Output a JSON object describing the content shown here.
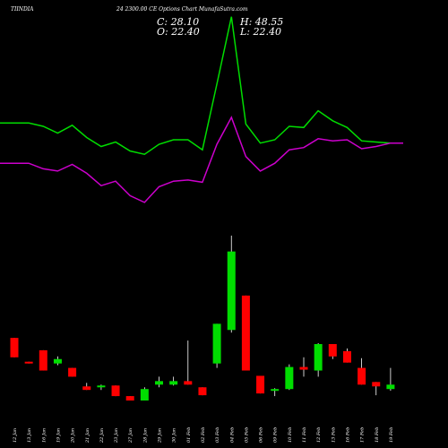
{
  "header": {
    "symbol": "TIINDIA",
    "contract": "24 2300.00  CE Options  Chart MunafaSutra.com",
    "c_label": "C: 28.10",
    "h_label": "H: 48.55",
    "o_label": "O: 22.40",
    "l_label": "L: 22.40"
  },
  "chart_data": {
    "type": "candlestick",
    "x_labels": [
      "12 Jan",
      "13 Jan",
      "16 Jan",
      "19 Jan",
      "20 Jan",
      "21 Jan",
      "22 Jan",
      "23 Jan",
      "27 Jan",
      "28 Jan",
      "29 Jan",
      "30 Jan",
      "01 Feb",
      "02 Feb",
      "03 Feb",
      "04 Feb",
      "05 Feb",
      "06 Feb",
      "09 Feb",
      "10 Feb",
      "11 Feb",
      "12 Feb",
      "13 Feb",
      "16 Feb",
      "17 Feb",
      "18 Feb",
      "19 Feb"
    ],
    "candle_price_range": [
      0,
      190
    ],
    "candles": [
      {
        "o": 71,
        "h": 71,
        "l": 49,
        "c": 49
      },
      {
        "o": 44,
        "h": 44,
        "l": 42,
        "c": 42
      },
      {
        "o": 57,
        "h": 57,
        "l": 34,
        "c": 34
      },
      {
        "o": 42,
        "h": 50,
        "l": 40,
        "c": 47
      },
      {
        "o": 37,
        "h": 37,
        "l": 27,
        "c": 27
      },
      {
        "o": 16,
        "h": 20,
        "l": 12,
        "c": 12
      },
      {
        "o": 15,
        "h": 18,
        "l": 12,
        "c": 17
      },
      {
        "o": 17,
        "h": 17,
        "l": 5,
        "c": 5
      },
      {
        "o": 5,
        "h": 5,
        "l": 0,
        "c": 0
      },
      {
        "o": 0,
        "h": 15,
        "l": 0,
        "c": 13
      },
      {
        "o": 18,
        "h": 27,
        "l": 15,
        "c": 22
      },
      {
        "o": 18,
        "h": 27,
        "l": 17,
        "c": 22
      },
      {
        "o": 22,
        "h": 68,
        "l": 18,
        "c": 18
      },
      {
        "o": 15,
        "h": 15,
        "l": 6,
        "c": 6
      },
      {
        "o": 42,
        "h": 87,
        "l": 37,
        "c": 87
      },
      {
        "o": 80,
        "h": 187,
        "l": 77,
        "c": 169
      },
      {
        "o": 119,
        "h": 119,
        "l": 34,
        "c": 34
      },
      {
        "o": 28,
        "h": 28,
        "l": 8,
        "c": 8
      },
      {
        "o": 12,
        "h": 14,
        "l": 5,
        "c": 13
      },
      {
        "o": 13,
        "h": 41,
        "l": 12,
        "c": 38
      },
      {
        "o": 38,
        "h": 49,
        "l": 27,
        "c": 35
      },
      {
        "o": 34,
        "h": 65,
        "l": 27,
        "c": 64
      },
      {
        "o": 64,
        "h": 64,
        "l": 47,
        "c": 50
      },
      {
        "o": 56,
        "h": 59,
        "l": 43,
        "c": 43
      },
      {
        "o": 37,
        "h": 48,
        "l": 18,
        "c": 18
      },
      {
        "o": 21,
        "h": 21,
        "l": 6,
        "c": 16
      },
      {
        "o": 13,
        "h": 37,
        "l": 11,
        "c": 18
      }
    ],
    "series": [
      {
        "color": "#00dd00",
        "values": [
          140,
          140,
          137,
          131,
          138,
          127,
          119,
          123,
          115,
          112,
          121,
          125,
          125,
          116,
          175,
          235,
          139,
          122,
          125,
          137,
          136,
          151,
          142,
          136,
          124,
          123,
          122
        ]
      },
      {
        "color": "#cc00cc",
        "values": [
          104,
          104,
          99,
          97,
          103,
          95,
          84,
          88,
          75,
          69,
          83,
          88,
          89,
          87,
          121,
          145,
          110,
          97,
          104,
          116,
          118,
          126,
          124,
          125,
          117,
          119,
          122
        ]
      }
    ],
    "line_value_range": [
      0,
      250
    ],
    "up_color": "#00dd00",
    "down_color": "#ff0000",
    "background": "#000000"
  }
}
